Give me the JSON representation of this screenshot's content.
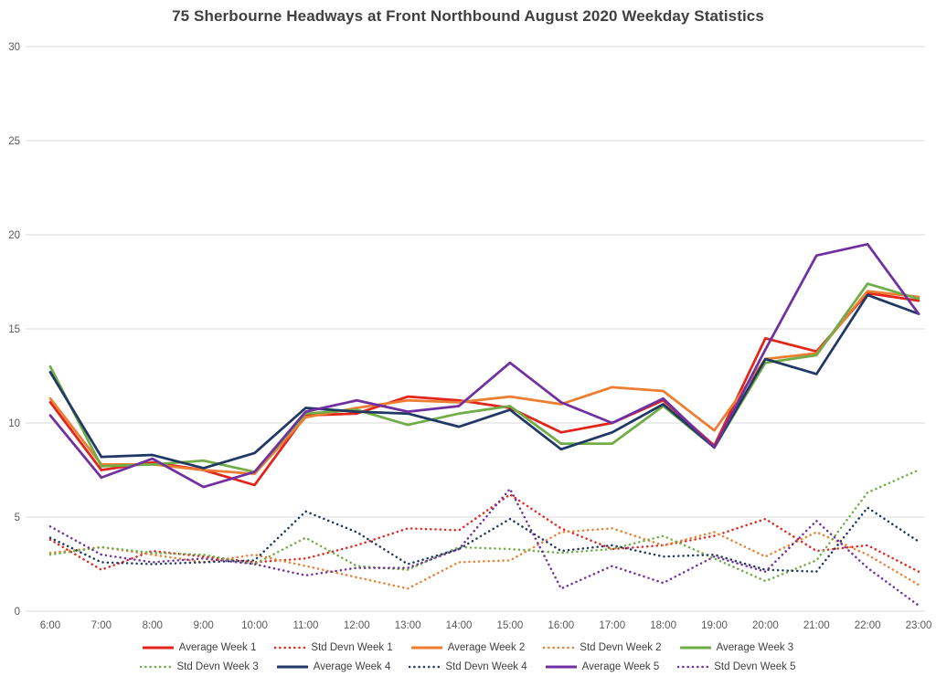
{
  "chart_data": {
    "type": "line",
    "title": "75 Sherbourne Headways at Front Northbound August 2020 Weekday Statistics",
    "xlabel": "",
    "ylabel": "",
    "ylim": [
      0,
      30
    ],
    "y_ticks": [
      0,
      5,
      10,
      15,
      20,
      25,
      30
    ],
    "grid": "horizontal",
    "legend_position": "bottom",
    "x_labels": [
      "6:00",
      "7:00",
      "8:00",
      "9:00",
      "10:00",
      "11:00",
      "12:00",
      "13:00",
      "14:00",
      "15:00",
      "16:00",
      "17:00",
      "18:00",
      "19:00",
      "20:00",
      "21:00",
      "22:00",
      "23:00"
    ],
    "series": [
      {
        "name": "Average Week 1",
        "color": "#E3241B",
        "style": "solid",
        "values": [
          11.1,
          7.5,
          7.9,
          7.5,
          6.7,
          10.4,
          10.5,
          11.4,
          11.2,
          10.8,
          9.5,
          10.0,
          11.2,
          8.8,
          14.5,
          13.8,
          16.9,
          16.5
        ]
      },
      {
        "name": "Std Devn Week 1",
        "color": "#E3241B",
        "style": "dotted",
        "values": [
          3.8,
          2.2,
          3.2,
          2.9,
          2.6,
          2.8,
          3.5,
          4.4,
          4.3,
          6.2,
          4.4,
          3.3,
          3.5,
          4.0,
          4.9,
          3.2,
          3.5,
          2.1
        ]
      },
      {
        "name": "Average Week 2",
        "color": "#ED7D31",
        "style": "solid",
        "values": [
          11.3,
          7.8,
          7.8,
          7.5,
          7.3,
          10.3,
          10.8,
          11.2,
          11.1,
          11.4,
          11.0,
          11.9,
          11.7,
          9.6,
          13.4,
          13.7,
          17.0,
          16.7
        ]
      },
      {
        "name": "Std Devn Week 2",
        "color": "#ED7D31",
        "style": "dotted",
        "values": [
          3.1,
          3.4,
          3.0,
          2.6,
          3.0,
          2.4,
          1.8,
          1.2,
          2.6,
          2.7,
          4.2,
          4.4,
          3.5,
          4.2,
          2.9,
          4.2,
          3.0,
          1.4
        ]
      },
      {
        "name": "Average Week 3",
        "color": "#70AD47",
        "style": "solid",
        "values": [
          13.0,
          7.7,
          7.8,
          8.0,
          7.4,
          10.5,
          10.7,
          9.9,
          10.5,
          10.9,
          8.9,
          8.9,
          10.9,
          8.7,
          13.2,
          13.6,
          17.4,
          16.6
        ]
      },
      {
        "name": "Std Devn Week 3",
        "color": "#70AD47",
        "style": "dotted",
        "values": [
          3.0,
          3.4,
          3.1,
          3.0,
          2.5,
          3.9,
          2.4,
          2.2,
          3.4,
          3.3,
          3.1,
          3.3,
          4.0,
          2.8,
          1.6,
          2.7,
          6.3,
          7.5
        ]
      },
      {
        "name": "Average Week 4",
        "color": "#1F3864",
        "style": "solid",
        "values": [
          12.7,
          8.2,
          8.3,
          7.6,
          8.4,
          10.8,
          10.6,
          10.5,
          9.8,
          10.7,
          8.6,
          9.5,
          11.0,
          8.7,
          13.4,
          12.6,
          16.8,
          15.8
        ]
      },
      {
        "name": "Std Devn Week 4",
        "color": "#1F3864",
        "style": "dotted",
        "values": [
          3.9,
          2.6,
          2.5,
          2.6,
          2.7,
          5.3,
          4.2,
          2.5,
          3.3,
          4.9,
          3.2,
          3.5,
          2.9,
          3.0,
          2.2,
          2.1,
          5.5,
          3.7
        ]
      },
      {
        "name": "Average Week 5",
        "color": "#7030A0",
        "style": "solid",
        "values": [
          10.4,
          7.1,
          8.1,
          6.6,
          7.4,
          10.6,
          11.2,
          10.6,
          10.9,
          13.2,
          11.1,
          10.0,
          11.3,
          8.7,
          13.9,
          18.9,
          19.5,
          15.8
        ]
      },
      {
        "name": "Std Devn Week 5",
        "color": "#7030A0",
        "style": "dotted",
        "values": [
          4.5,
          3.0,
          2.6,
          2.8,
          2.5,
          1.9,
          2.3,
          2.3,
          3.3,
          6.5,
          1.2,
          2.4,
          1.5,
          2.9,
          2.1,
          4.8,
          2.3,
          0.3
        ]
      }
    ],
    "style": {
      "gridline_color": "#d9d9d9",
      "tick_label_color": "#595959",
      "legend_label_color": "#404040",
      "title_color": "#404040"
    }
  }
}
